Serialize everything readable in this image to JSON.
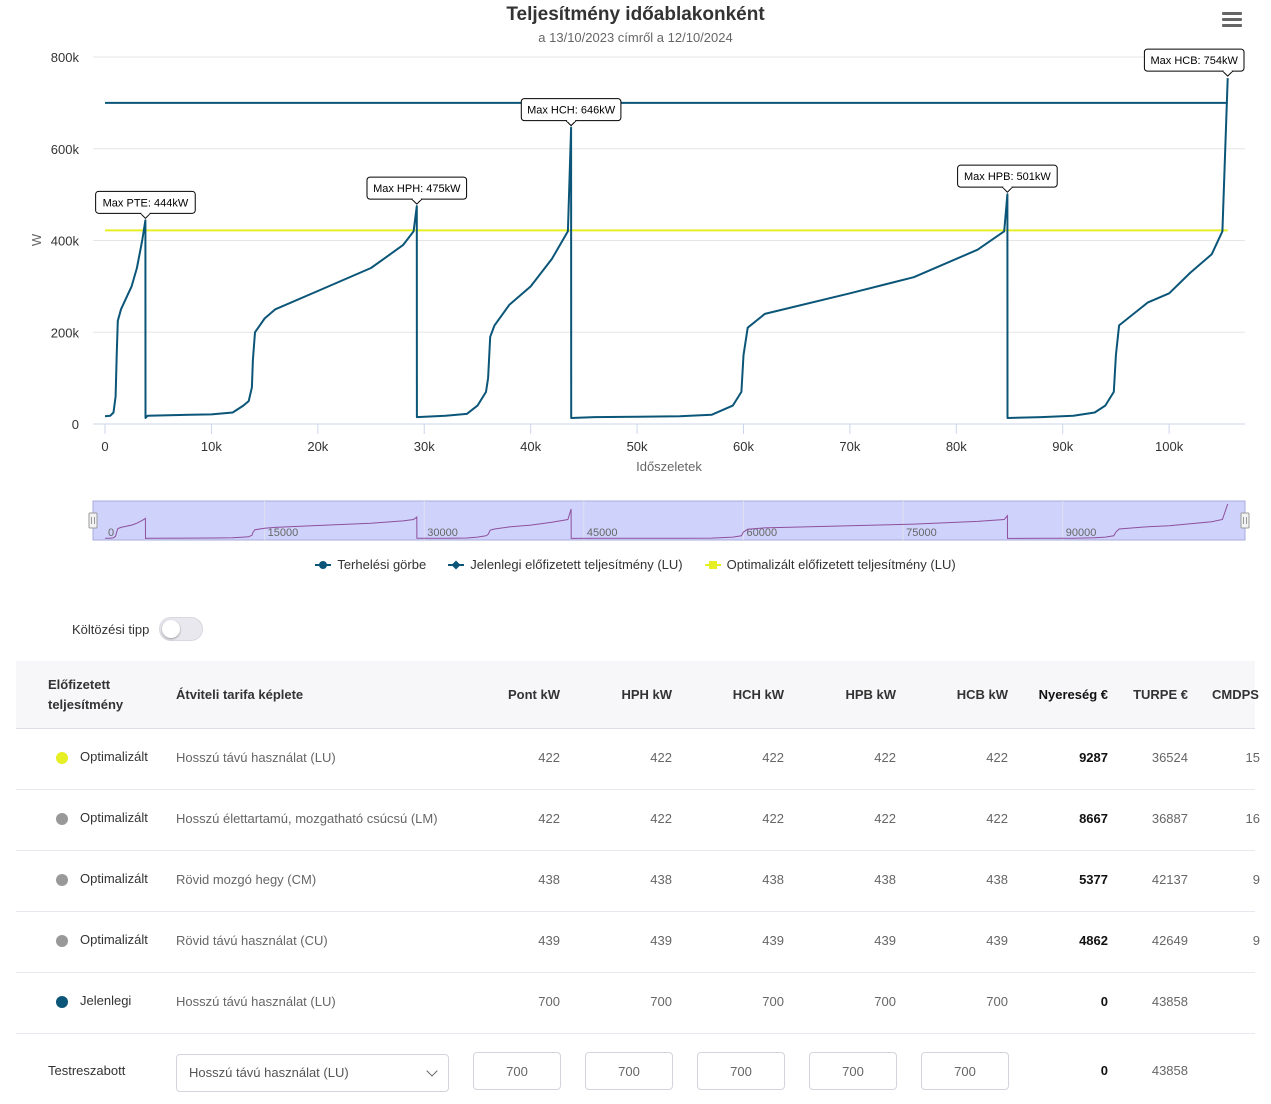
{
  "chart": {
    "title": "Teljesítmény időablakonként",
    "subtitle": "a 13/10/2023 címről a 12/10/2024",
    "menu_icon": "hamburger-menu-icon"
  },
  "chart_data": {
    "type": "line",
    "xlabel": "Időszeletek",
    "ylabel": "W",
    "xlim": [
      0,
      106000
    ],
    "ylim": [
      0,
      800000
    ],
    "x_ticks": [
      0,
      10000,
      20000,
      30000,
      40000,
      50000,
      60000,
      70000,
      80000,
      90000,
      100000
    ],
    "x_tick_labels": [
      "0",
      "10k",
      "20k",
      "30k",
      "40k",
      "50k",
      "60k",
      "70k",
      "80k",
      "90k",
      "100k"
    ],
    "y_ticks": [
      0,
      200000,
      400000,
      600000,
      800000
    ],
    "y_tick_labels": [
      "0",
      "200k",
      "400k",
      "600k",
      "800k"
    ],
    "grid": true,
    "legend_position": "bottom",
    "series": [
      {
        "name": "Terhelési görbe",
        "color": "#0b5678",
        "points": [
          [
            0,
            17000
          ],
          [
            500,
            18000
          ],
          [
            800,
            25000
          ],
          [
            1000,
            60000
          ],
          [
            1100,
            150000
          ],
          [
            1200,
            225000
          ],
          [
            1500,
            250000
          ],
          [
            2000,
            275000
          ],
          [
            2500,
            300000
          ],
          [
            3000,
            340000
          ],
          [
            3500,
            400000
          ],
          [
            3800,
            444000
          ],
          [
            3810,
            13000
          ],
          [
            4000,
            18000
          ],
          [
            8000,
            20000
          ],
          [
            10000,
            21000
          ],
          [
            12000,
            25000
          ],
          [
            13000,
            40000
          ],
          [
            13500,
            50000
          ],
          [
            13800,
            80000
          ],
          [
            13900,
            140000
          ],
          [
            14100,
            200000
          ],
          [
            15000,
            230000
          ],
          [
            16000,
            250000
          ],
          [
            20000,
            290000
          ],
          [
            25000,
            340000
          ],
          [
            28000,
            390000
          ],
          [
            29000,
            420000
          ],
          [
            29300,
            475000
          ],
          [
            29310,
            15000
          ],
          [
            32000,
            18000
          ],
          [
            34000,
            22000
          ],
          [
            35000,
            40000
          ],
          [
            35800,
            70000
          ],
          [
            36000,
            100000
          ],
          [
            36200,
            190000
          ],
          [
            36600,
            215000
          ],
          [
            38000,
            260000
          ],
          [
            40000,
            300000
          ],
          [
            42000,
            360000
          ],
          [
            43500,
            420000
          ],
          [
            43800,
            646000
          ],
          [
            43810,
            13000
          ],
          [
            46000,
            15000
          ],
          [
            50000,
            16000
          ],
          [
            54000,
            17000
          ],
          [
            57000,
            20000
          ],
          [
            59000,
            40000
          ],
          [
            59800,
            70000
          ],
          [
            60000,
            150000
          ],
          [
            60400,
            210000
          ],
          [
            62000,
            240000
          ],
          [
            70000,
            285000
          ],
          [
            76000,
            320000
          ],
          [
            82000,
            380000
          ],
          [
            84500,
            420000
          ],
          [
            84800,
            501000
          ],
          [
            84810,
            13000
          ],
          [
            88000,
            15000
          ],
          [
            91000,
            18000
          ],
          [
            93000,
            25000
          ],
          [
            94000,
            40000
          ],
          [
            94800,
            70000
          ],
          [
            95000,
            150000
          ],
          [
            95300,
            215000
          ],
          [
            98000,
            265000
          ],
          [
            100000,
            285000
          ],
          [
            102000,
            330000
          ],
          [
            104000,
            370000
          ],
          [
            105000,
            420000
          ],
          [
            105500,
            754000
          ]
        ]
      },
      {
        "name": "Jelenlegi előfizetett teljesítmény (LU)",
        "color": "#0b5678",
        "points": [
          [
            0,
            700000
          ],
          [
            105500,
            700000
          ]
        ]
      },
      {
        "name": "Optimalizált előfizetett teljesítmény (LU)",
        "color": "#e6ee24",
        "points": [
          [
            0,
            422000
          ],
          [
            105500,
            422000
          ]
        ]
      }
    ],
    "annotations": [
      {
        "text": "Max PTE: 444kW",
        "x": 3800,
        "y": 444000
      },
      {
        "text": "Max HPH: 475kW",
        "x": 29300,
        "y": 475000
      },
      {
        "text": "Max HCH: 646kW",
        "x": 43800,
        "y": 646000
      },
      {
        "text": "Max HPB: 501kW",
        "x": 84800,
        "y": 501000
      },
      {
        "text": "Max HCB: 754kW",
        "x": 105500,
        "y": 754000
      }
    ],
    "navigator": {
      "tick_labels": [
        "0",
        "15000",
        "30000",
        "45000",
        "60000",
        "75000",
        "90000"
      ],
      "ticks": [
        0,
        15000,
        30000,
        45000,
        60000,
        75000,
        90000
      ],
      "color": "#8e4f9c",
      "fill": "#cfd2fb"
    }
  },
  "toggle": {
    "label": "Költözési tipp",
    "on": false
  },
  "table": {
    "headers": {
      "subscribed": "Előfizetett teljesítmény",
      "formula": "Átviteli tarifa képlete",
      "pont": "Pont kW",
      "hph": "HPH kW",
      "hch": "HCH kW",
      "hpb": "HPB kW",
      "hcb": "HCB kW",
      "gain": "Nyereség €",
      "turpe": "TURPE €",
      "cmdps": "CMDPS"
    },
    "rows": [
      {
        "label": "Optimalizált",
        "dot": "#e6ee24",
        "formula": "Hosszú távú használat (LU)",
        "pont": "422",
        "hph": "422",
        "hch": "422",
        "hpb": "422",
        "hcb": "422",
        "gain": "9287",
        "turpe": "36524",
        "cmdps": "15"
      },
      {
        "label": "Optimalizált",
        "dot": "#999999",
        "formula": "Hosszú élettartamú, mozgatható csúcsú (LM)",
        "pont": "422",
        "hph": "422",
        "hch": "422",
        "hpb": "422",
        "hcb": "422",
        "gain": "8667",
        "turpe": "36887",
        "cmdps": "16"
      },
      {
        "label": "Optimalizált",
        "dot": "#999999",
        "formula": "Rövid mozgó hegy (CM)",
        "pont": "438",
        "hph": "438",
        "hch": "438",
        "hpb": "438",
        "hcb": "438",
        "gain": "5377",
        "turpe": "42137",
        "cmdps": "9"
      },
      {
        "label": "Optimalizált",
        "dot": "#999999",
        "formula": "Rövid távú használat (CU)",
        "pont": "439",
        "hph": "439",
        "hch": "439",
        "hpb": "439",
        "hcb": "439",
        "gain": "4862",
        "turpe": "42649",
        "cmdps": "9"
      },
      {
        "label": "Jelenlegi",
        "dot": "#0b5678",
        "formula": "Hosszú távú használat (LU)",
        "pont": "700",
        "hph": "700",
        "hch": "700",
        "hpb": "700",
        "hcb": "700",
        "gain": "0",
        "turpe": "43858",
        "cmdps": ""
      }
    ],
    "custom": {
      "label": "Testreszabott",
      "select_value": "Hosszú távú használat (LU)",
      "pont": "700",
      "hph": "700",
      "hch": "700",
      "hpb": "700",
      "hcb": "700",
      "gain": "0",
      "turpe": "43858"
    }
  }
}
